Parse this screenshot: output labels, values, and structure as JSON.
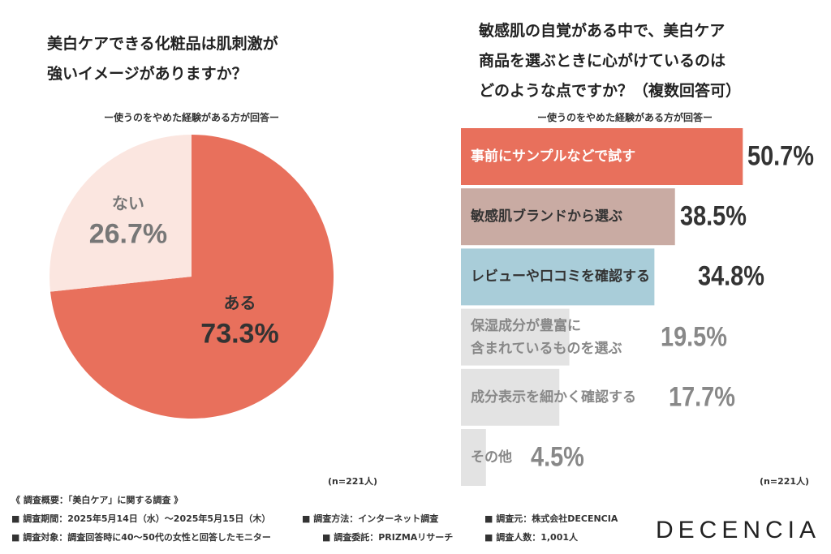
{
  "chart_data": [
    {
      "type": "pie",
      "title": "美白ケアできる化粧品は肌刺激が\n強いイメージがありますか？",
      "subtitle": "ー使うのをやめた経験がある方が回答ー",
      "categories": [
        "ある",
        "ない"
      ],
      "values": [
        73.3,
        26.7
      ],
      "value_labels": [
        "73.3%",
        "26.7%"
      ],
      "colors": [
        "#e8705c",
        "#fbe6e0"
      ],
      "note": "(n=221人)"
    },
    {
      "type": "hbar",
      "title": "敏感肌の自覚がある中で、美白ケア\n商品を選ぶときに心がけているのは\nどのような点ですか？（複数回答可）",
      "subtitle": "ー使うのをやめた経験がある方が回答ー",
      "categories": [
        "事前にサンプルなどで試す",
        "敏感肌ブランドから選ぶ",
        "レビューや口コミを確認する",
        "保湿成分が豊富に\n含まれているものを選ぶ",
        "成分表示を細かく確認する",
        "その他"
      ],
      "values": [
        50.7,
        38.5,
        34.8,
        19.5,
        17.7,
        4.5
      ],
      "value_labels": [
        "50.7%",
        "38.5%",
        "34.8%",
        "19.5%",
        "17.7%",
        "4.5%"
      ],
      "colors": [
        "#e8705c",
        "#c9aba3",
        "#a9cdd9",
        "#e3e3e3",
        "#e3e3e3",
        "#e3e3e3"
      ],
      "note": "(n=221人)"
    }
  ],
  "footer": {
    "heading": "《 調査概要：「美白ケア」に関する調査 》",
    "items": [
      "■ 調査期間：2025年5月14日（水）〜2025年5月15日（木）",
      "■ 調査方法：インターネット調査",
      "■ 調査元：株式会社DECENCIA",
      "■ 調査対象：調査回答時に40〜50代の女性と回答したモニター",
      "■ 調査委託：PRIZMAリサーチ",
      "■ 調査人数：1,001人"
    ],
    "logo": "DECENCIA"
  }
}
